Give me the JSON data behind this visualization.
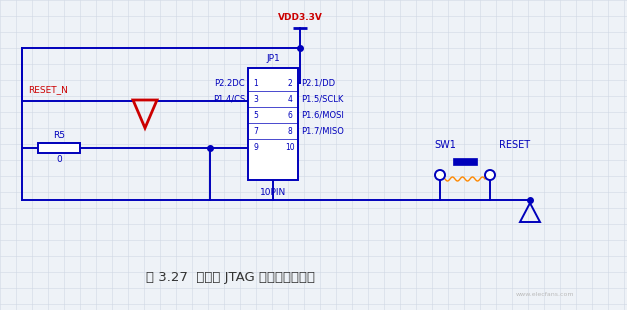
{
  "bg_color": "#eef2f7",
  "grid_color": "#d0d8e4",
  "blue": "#0000bb",
  "red": "#cc0000",
  "title": "图 3.27  复位与 JTAG 接口电路原理图",
  "vdd_label": "VDD3.3V",
  "jp1_label": "JP1",
  "pin10_label": "10PIN",
  "reset_n_label": "RESET_N",
  "r5_label": "R5",
  "r5_val": "0",
  "sw1_label": "SW1",
  "reset_label": "RESET",
  "figsize": [
    6.27,
    3.1
  ],
  "dpi": 100
}
